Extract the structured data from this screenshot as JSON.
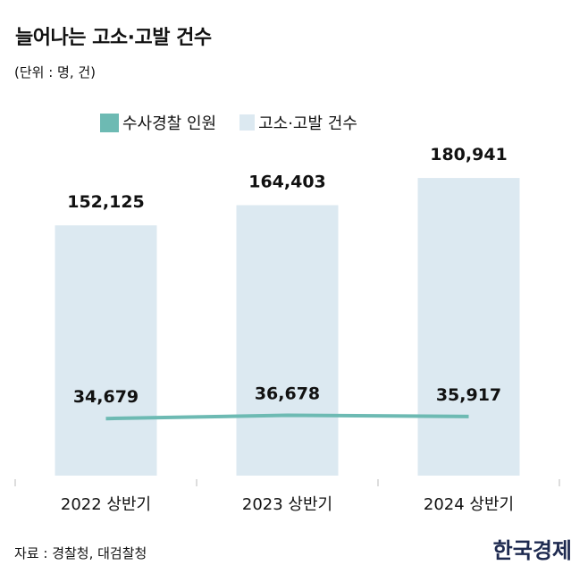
{
  "chart_data": {
    "type": "bar+line",
    "title": "늘어나는 고소·고발 건수",
    "unit_note": "(단위 : 명, 건)",
    "categories": [
      "2022 상반기",
      "2023 상반기",
      "2024 상반기"
    ],
    "series": [
      {
        "name": "수사경찰 인원",
        "type": "line",
        "color": "#6dbab3",
        "values": [
          34679,
          36678,
          35917
        ],
        "labels": [
          "34,679",
          "36,678",
          "35,917"
        ]
      },
      {
        "name": "고소·고발 건수",
        "type": "bar",
        "color": "#dce9f1",
        "values": [
          152125,
          164403,
          180941
        ],
        "labels": [
          "152,125",
          "164,403",
          "180,941"
        ]
      }
    ],
    "legend_position": "top-center",
    "grid": false
  },
  "footer": {
    "source": "자료 : 경찰청, 대검찰청",
    "brand": "한국경제"
  }
}
